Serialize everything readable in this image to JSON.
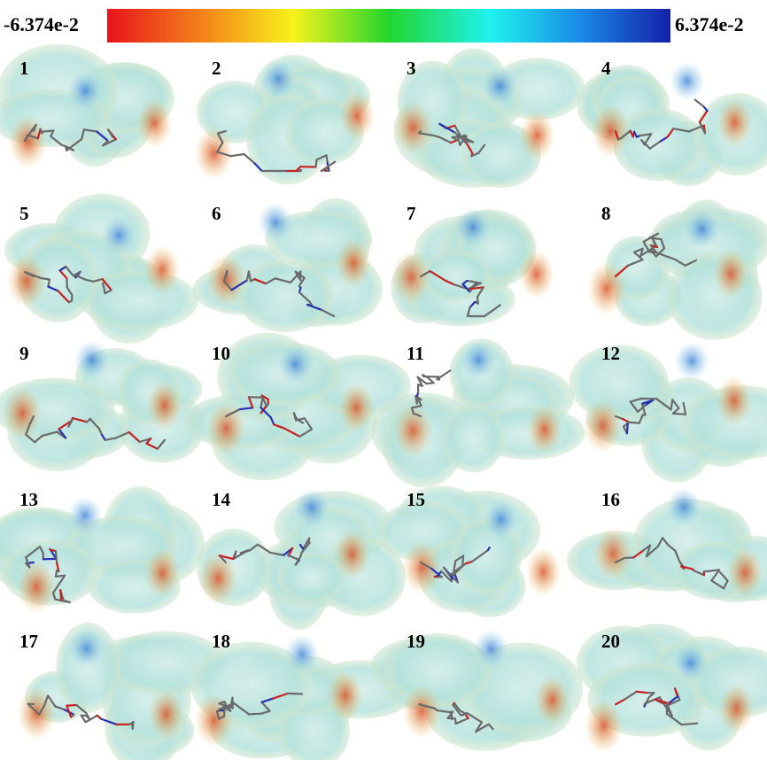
{
  "colorbar": {
    "min_label": "-6.374e-2",
    "max_label": "6.374e-2"
  },
  "panels": [
    {
      "label": "1"
    },
    {
      "label": "2"
    },
    {
      "label": "3"
    },
    {
      "label": "4"
    },
    {
      "label": "5"
    },
    {
      "label": "6"
    },
    {
      "label": "7"
    },
    {
      "label": "8"
    },
    {
      "label": "9"
    },
    {
      "label": "10"
    },
    {
      "label": "11"
    },
    {
      "label": "12"
    },
    {
      "label": "13"
    },
    {
      "label": "14"
    },
    {
      "label": "15"
    },
    {
      "label": "16"
    },
    {
      "label": "17"
    },
    {
      "label": "18"
    },
    {
      "label": "19"
    },
    {
      "label": "20"
    }
  ]
}
